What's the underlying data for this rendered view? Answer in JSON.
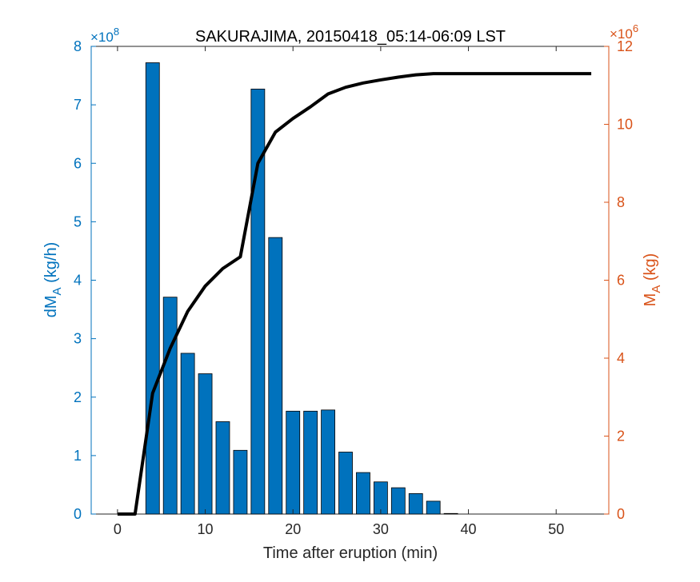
{
  "chart_data": {
    "type": "bar",
    "title": "SAKURAJIMA, 20150418_05:14-06:09 LST",
    "xlabel": "Time after eruption (min)",
    "xlim": [
      -3,
      56
    ],
    "x_ticks": [
      0,
      10,
      20,
      30,
      40,
      50
    ],
    "left_axis": {
      "label_main": "dM",
      "label_sub": "A",
      "label_suffix": " (kg/h)",
      "exponent_base": "×10",
      "exponent_power": "8",
      "ylim": [
        0,
        8
      ],
      "ticks": [
        0,
        1,
        2,
        3,
        4,
        5,
        6,
        7,
        8
      ],
      "color": "#0072BD"
    },
    "right_axis": {
      "label_main": "M",
      "label_sub": "A",
      "label_suffix": " (kg)",
      "exponent_base": "×10",
      "exponent_power": "6",
      "ylim": [
        0,
        12
      ],
      "ticks": [
        0,
        2,
        4,
        6,
        8,
        10,
        12
      ],
      "color": "#D95319"
    },
    "bar_series": {
      "axis": "left",
      "color": "#0072BD",
      "bar_width": 1.55,
      "x": [
        0,
        2,
        4,
        6,
        8,
        10,
        12,
        14,
        16,
        18,
        20,
        22,
        24,
        26,
        28,
        30,
        32,
        34,
        36,
        38,
        40,
        42,
        44,
        46,
        48,
        50,
        52,
        54
      ],
      "values": [
        0,
        0,
        7.72,
        3.71,
        2.75,
        2.4,
        1.58,
        1.09,
        7.27,
        4.73,
        1.76,
        1.76,
        1.78,
        1.06,
        0.71,
        0.55,
        0.45,
        0.35,
        0.22,
        0.01,
        0,
        0,
        0,
        0,
        0,
        0,
        0,
        0
      ]
    },
    "line_series": {
      "axis": "right",
      "color": "#000000",
      "x": [
        0,
        2,
        4,
        6,
        8,
        10,
        12,
        14,
        16,
        18,
        20,
        22,
        24,
        26,
        28,
        30,
        32,
        34,
        36,
        38,
        40,
        42,
        44,
        46,
        48,
        50,
        52,
        54
      ],
      "values": [
        0,
        0,
        3.1,
        4.25,
        5.2,
        5.85,
        6.3,
        6.6,
        9.0,
        9.8,
        10.15,
        10.45,
        10.78,
        10.95,
        11.06,
        11.14,
        11.21,
        11.27,
        11.3,
        11.3,
        11.3,
        11.3,
        11.3,
        11.3,
        11.3,
        11.3,
        11.3,
        11.3
      ]
    }
  }
}
